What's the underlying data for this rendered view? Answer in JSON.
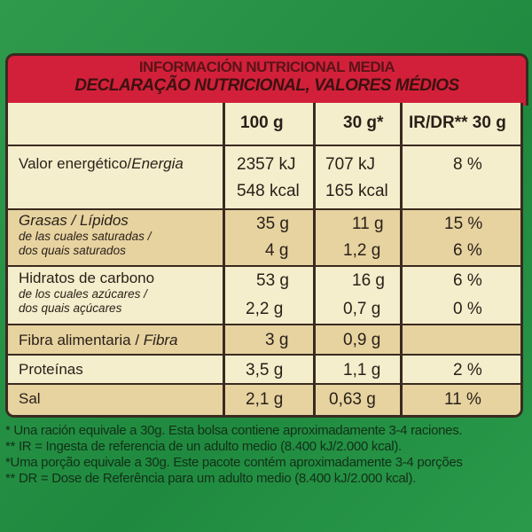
{
  "title_es": "INFORMACIÓN NUTRICIONAL MEDIA",
  "title_pt": "DECLARAÇÃO NUTRICIONAL, VALORES MÉDIOS",
  "headers": {
    "per100": "100 g",
    "per30": "30 g*",
    "ir": "IR/DR** 30 g"
  },
  "rows": [
    {
      "label": "Valor energético/",
      "label_it": "Energia",
      "v100": "2357 kJ",
      "v30": "707 kJ",
      "ir": "8 %",
      "v100b": "548 kcal",
      "v30b": "165 kcal"
    },
    {
      "label": "Grasas / ",
      "label_it": "Lípidos",
      "v100": "35 g",
      "v30": "11 g",
      "ir": "15 %",
      "sub1": "de las cuales saturadas /",
      "sub2": "dos quais saturados",
      "v100b": "4 g",
      "v30b": "1,2 g",
      "irb": "6 %"
    },
    {
      "label": "Hidratos de carbono",
      "v100": "53 g",
      "v30": "16 g",
      "ir": "6 %",
      "sub1": "de los cuales azúcares /",
      "sub2": "dos quais açúcares",
      "v100b": "2,2 g",
      "v30b": "0,7 g",
      "irb": "0 %"
    },
    {
      "label": "Fibra alimentaria / ",
      "label_it": "Fibra",
      "v100": "3 g",
      "v30": "0,9 g",
      "ir": ""
    },
    {
      "label": "Proteínas",
      "v100": "3,5 g",
      "v30": "1,1 g",
      "ir": "2 %"
    },
    {
      "label": "Sal",
      "v100": "2,1 g",
      "v30": "0,63 g",
      "ir": "11 %"
    }
  ],
  "footnotes": [
    "* Una ración equivale a 30g. Esta bolsa contiene  aproximadamente 3-4 raciones.",
    "** IR =  Ingesta de referencia de un adulto medio (8.400 kJ/2.000 kcal).",
    "*Uma porção equivale a 30g. Este pacote contém aproximadamente 3-4 porções",
    "** DR = Dose de Referência para um adulto medio (8.400 kJ/2.000 kcal)."
  ]
}
